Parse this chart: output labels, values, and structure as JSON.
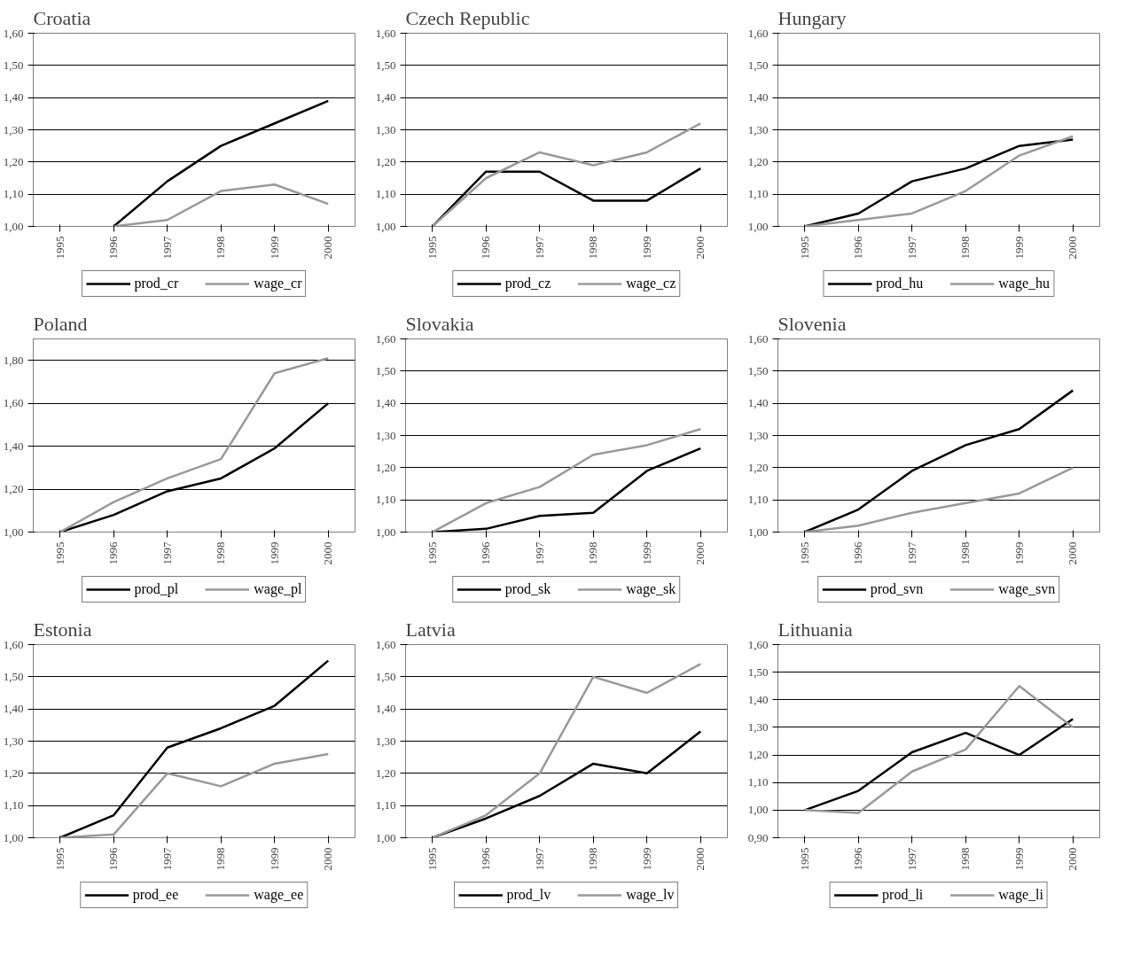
{
  "chart_data": [
    {
      "type": "line",
      "title": "Croatia",
      "categories": [
        "1995",
        "1996",
        "1997",
        "1998",
        "1999",
        "2000"
      ],
      "ylim": [
        1.0,
        1.6
      ],
      "yticks": [
        {
          "value": 1.0,
          "label": "1,00"
        },
        {
          "value": 1.1,
          "label": "1,10"
        },
        {
          "value": 1.2,
          "label": "1,20"
        },
        {
          "value": 1.3,
          "label": "1,30"
        },
        {
          "value": 1.4,
          "label": "1,40"
        },
        {
          "value": 1.5,
          "label": "1,50"
        },
        {
          "value": 1.6,
          "label": "1,60"
        }
      ],
      "grid": "y",
      "legend": "bottom",
      "marker": "none",
      "series": [
        {
          "name": "prod_cr",
          "color": "#000000",
          "values": [
            null,
            1.0,
            1.14,
            1.25,
            1.32,
            1.39
          ]
        },
        {
          "name": "wage_cr",
          "color": "#999999",
          "values": [
            null,
            1.0,
            1.02,
            1.11,
            1.13,
            1.07
          ]
        }
      ]
    },
    {
      "type": "line",
      "title": "Czech Republic",
      "categories": [
        "1995",
        "1996",
        "1997",
        "1998",
        "1999",
        "2000"
      ],
      "ylim": [
        1.0,
        1.6
      ],
      "yticks": [
        {
          "value": 1.0,
          "label": "1,00"
        },
        {
          "value": 1.1,
          "label": "1,10"
        },
        {
          "value": 1.2,
          "label": "1,20"
        },
        {
          "value": 1.3,
          "label": "1,30"
        },
        {
          "value": 1.4,
          "label": "1,40"
        },
        {
          "value": 1.5,
          "label": "1,50"
        },
        {
          "value": 1.6,
          "label": "1,60"
        }
      ],
      "grid": "y",
      "legend": "bottom",
      "marker": "none",
      "series": [
        {
          "name": "prod_cz",
          "color": "#000000",
          "values": [
            1.0,
            1.17,
            1.17,
            1.08,
            1.08,
            1.18
          ]
        },
        {
          "name": "wage_cz",
          "color": "#999999",
          "values": [
            1.0,
            1.15,
            1.23,
            1.19,
            1.23,
            1.32
          ]
        }
      ]
    },
    {
      "type": "line",
      "title": "Hungary",
      "categories": [
        "1995",
        "1996",
        "1997",
        "1998",
        "1999",
        "2000"
      ],
      "ylim": [
        1.0,
        1.6
      ],
      "yticks": [
        {
          "value": 1.0,
          "label": "1,00"
        },
        {
          "value": 1.1,
          "label": "1,10"
        },
        {
          "value": 1.2,
          "label": "1,20"
        },
        {
          "value": 1.3,
          "label": "1,30"
        },
        {
          "value": 1.4,
          "label": "1,40"
        },
        {
          "value": 1.5,
          "label": "1,50"
        },
        {
          "value": 1.6,
          "label": "1,60"
        }
      ],
      "grid": "y",
      "legend": "bottom",
      "marker": "none",
      "series": [
        {
          "name": "prod_hu",
          "color": "#000000",
          "values": [
            1.0,
            1.04,
            1.14,
            1.18,
            1.25,
            1.27
          ]
        },
        {
          "name": "wage_hu",
          "color": "#999999",
          "values": [
            1.0,
            1.02,
            1.04,
            1.11,
            1.22,
            1.28
          ]
        }
      ]
    },
    {
      "type": "line",
      "title": "Poland",
      "categories": [
        "1995",
        "1996",
        "1997",
        "1998",
        "1999",
        "2000"
      ],
      "ylim": [
        1.0,
        1.9
      ],
      "yticks": [
        {
          "value": 1.0,
          "label": "1,00"
        },
        {
          "value": 1.2,
          "label": "1,20"
        },
        {
          "value": 1.4,
          "label": "1,40"
        },
        {
          "value": 1.6,
          "label": "1,60"
        },
        {
          "value": 1.8,
          "label": "1,80"
        }
      ],
      "grid": "y",
      "legend": "bottom",
      "marker": "none",
      "series": [
        {
          "name": "prod_pl",
          "color": "#000000",
          "values": [
            1.0,
            1.08,
            1.19,
            1.25,
            1.39,
            1.6
          ]
        },
        {
          "name": "wage_pl",
          "color": "#999999",
          "values": [
            1.0,
            1.14,
            1.25,
            1.34,
            1.74,
            1.81
          ]
        }
      ]
    },
    {
      "type": "line",
      "title": "Slovakia",
      "categories": [
        "1995",
        "1996",
        "1997",
        "1998",
        "1999",
        "2000"
      ],
      "ylim": [
        1.0,
        1.6
      ],
      "yticks": [
        {
          "value": 1.0,
          "label": "1,00"
        },
        {
          "value": 1.1,
          "label": "1,10"
        },
        {
          "value": 1.2,
          "label": "1,20"
        },
        {
          "value": 1.3,
          "label": "1,30"
        },
        {
          "value": 1.4,
          "label": "1,40"
        },
        {
          "value": 1.5,
          "label": "1,50"
        },
        {
          "value": 1.6,
          "label": "1,60"
        }
      ],
      "grid": "y",
      "legend": "bottom",
      "marker": "none",
      "series": [
        {
          "name": "prod_sk",
          "color": "#000000",
          "values": [
            1.0,
            1.01,
            1.05,
            1.06,
            1.19,
            1.26
          ]
        },
        {
          "name": "wage_sk",
          "color": "#999999",
          "values": [
            1.0,
            1.09,
            1.14,
            1.24,
            1.27,
            1.32
          ]
        }
      ]
    },
    {
      "type": "line",
      "title": "Slovenia",
      "categories": [
        "1995",
        "1996",
        "1997",
        "1998",
        "1999",
        "2000"
      ],
      "ylim": [
        1.0,
        1.6
      ],
      "yticks": [
        {
          "value": 1.0,
          "label": "1,00"
        },
        {
          "value": 1.1,
          "label": "1,10"
        },
        {
          "value": 1.2,
          "label": "1,20"
        },
        {
          "value": 1.3,
          "label": "1,30"
        },
        {
          "value": 1.4,
          "label": "1,40"
        },
        {
          "value": 1.5,
          "label": "1,50"
        },
        {
          "value": 1.6,
          "label": "1,60"
        }
      ],
      "grid": "y",
      "legend": "bottom",
      "marker": "none",
      "series": [
        {
          "name": "prod_svn",
          "color": "#000000",
          "values": [
            1.0,
            1.07,
            1.19,
            1.27,
            1.32,
            1.44
          ]
        },
        {
          "name": "wage_svn",
          "color": "#999999",
          "values": [
            1.0,
            1.02,
            1.06,
            1.09,
            1.12,
            1.2
          ]
        }
      ]
    },
    {
      "type": "line",
      "title": "Estonia",
      "categories": [
        "1995",
        "1996",
        "1997",
        "1998",
        "1999",
        "2000"
      ],
      "ylim": [
        1.0,
        1.6
      ],
      "yticks": [
        {
          "value": 1.0,
          "label": "1,00"
        },
        {
          "value": 1.1,
          "label": "1,10"
        },
        {
          "value": 1.2,
          "label": "1,20"
        },
        {
          "value": 1.3,
          "label": "1,30"
        },
        {
          "value": 1.4,
          "label": "1,40"
        },
        {
          "value": 1.5,
          "label": "1,50"
        },
        {
          "value": 1.6,
          "label": "1,60"
        }
      ],
      "grid": "y",
      "legend": "bottom",
      "marker": "none",
      "series": [
        {
          "name": "prod_ee",
          "color": "#000000",
          "values": [
            1.0,
            1.07,
            1.28,
            1.34,
            1.41,
            1.55
          ]
        },
        {
          "name": "wage_ee",
          "color": "#999999",
          "values": [
            1.0,
            1.01,
            1.2,
            1.16,
            1.23,
            1.26
          ]
        }
      ]
    },
    {
      "type": "line",
      "title": "Latvia",
      "categories": [
        "1995",
        "1996",
        "1997",
        "1998",
        "1999",
        "2000"
      ],
      "ylim": [
        1.0,
        1.6
      ],
      "yticks": [
        {
          "value": 1.0,
          "label": "1,00"
        },
        {
          "value": 1.1,
          "label": "1,10"
        },
        {
          "value": 1.2,
          "label": "1,20"
        },
        {
          "value": 1.3,
          "label": "1,30"
        },
        {
          "value": 1.4,
          "label": "1,40"
        },
        {
          "value": 1.5,
          "label": "1,50"
        },
        {
          "value": 1.6,
          "label": "1,60"
        }
      ],
      "grid": "y",
      "legend": "bottom",
      "marker": "none",
      "series": [
        {
          "name": "prod_lv",
          "color": "#000000",
          "values": [
            1.0,
            1.06,
            1.13,
            1.23,
            1.2,
            1.33
          ]
        },
        {
          "name": "wage_lv",
          "color": "#999999",
          "values": [
            1.0,
            1.07,
            1.2,
            1.5,
            1.45,
            1.54
          ]
        }
      ]
    },
    {
      "type": "line",
      "title": "Lithuania",
      "categories": [
        "1995",
        "1996",
        "1997",
        "1998",
        "1999",
        "2000"
      ],
      "ylim": [
        0.9,
        1.6
      ],
      "yticks": [
        {
          "value": 0.9,
          "label": "0,90"
        },
        {
          "value": 1.0,
          "label": "1,00"
        },
        {
          "value": 1.1,
          "label": "1,10"
        },
        {
          "value": 1.2,
          "label": "1,20"
        },
        {
          "value": 1.3,
          "label": "1,30"
        },
        {
          "value": 1.4,
          "label": "1,40"
        },
        {
          "value": 1.5,
          "label": "1,50"
        },
        {
          "value": 1.6,
          "label": "1,60"
        }
      ],
      "grid": "y",
      "legend": "bottom",
      "marker": "none",
      "series": [
        {
          "name": "prod_li",
          "color": "#000000",
          "values": [
            1.0,
            1.07,
            1.21,
            1.28,
            1.2,
            1.33
          ]
        },
        {
          "name": "wage_li",
          "color": "#999999",
          "values": [
            1.0,
            0.99,
            1.14,
            1.22,
            1.45,
            1.3
          ]
        }
      ]
    }
  ]
}
